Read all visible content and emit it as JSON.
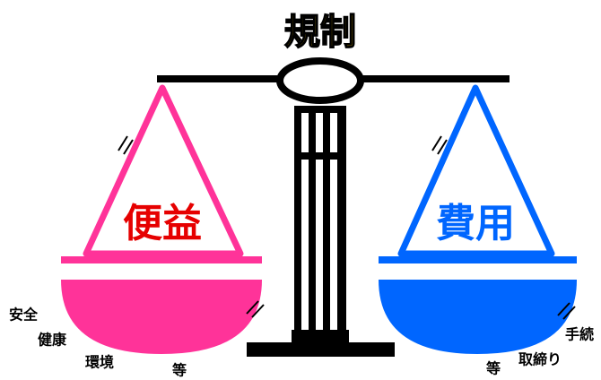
{
  "title": "規制",
  "left": {
    "label": "便益",
    "items": [
      "安全",
      "健康",
      "環境",
      "等"
    ]
  },
  "right": {
    "label": "費用",
    "items": [
      "等",
      "取締り",
      "手続"
    ]
  }
}
